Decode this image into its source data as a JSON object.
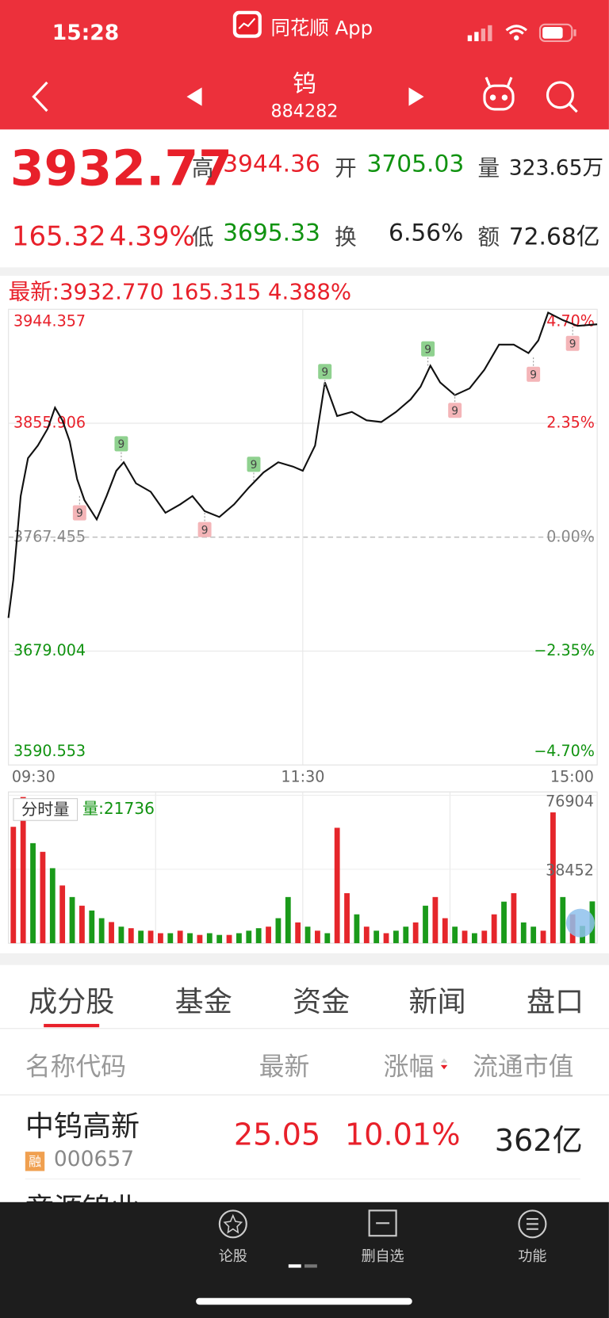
{
  "status_bar": {
    "time": "15:28",
    "app_name": "同花顺 App"
  },
  "header": {
    "title": "钨",
    "code": "884282"
  },
  "quote": {
    "price": "3932.77",
    "change": "165.32",
    "change_pct": "4.39%",
    "stats": [
      {
        "label": "高",
        "value": "3944.36"
      },
      {
        "label": "开",
        "value": "3705.03"
      },
      {
        "label": "量",
        "value": "323.65万"
      },
      {
        "label": "低",
        "value": "3695.33"
      },
      {
        "label": "换",
        "value": "6.56%"
      },
      {
        "label": "额",
        "value": "72.68亿"
      }
    ]
  },
  "chart_data": [
    {
      "type": "line",
      "title": "最新:3932.770 165.315 4.388%",
      "color": "#111111",
      "x": [
        0,
        2,
        5,
        8,
        12,
        16,
        19,
        22,
        25,
        28,
        31,
        36,
        40,
        44,
        47,
        52,
        58,
        64,
        70,
        75,
        80,
        86,
        92,
        98,
        104,
        110,
        116,
        120,
        125,
        129,
        134,
        140,
        146,
        152,
        158,
        164,
        168,
        172,
        176,
        182,
        188,
        194,
        200,
        206,
        212,
        216,
        220,
        226,
        232,
        240
      ],
      "values": [
        3704.8,
        3734.2,
        3799.4,
        3828.8,
        3838.6,
        3851.7,
        3868.0,
        3858.2,
        3841.9,
        3812.5,
        3796.2,
        3781.2,
        3799.4,
        3819.0,
        3825.6,
        3809.2,
        3802.7,
        3786.4,
        3792.9,
        3799.4,
        3787.7,
        3783.1,
        3792.9,
        3806.0,
        3817.7,
        3825.6,
        3822.3,
        3819.0,
        3838.6,
        3887.6,
        3861.5,
        3864.7,
        3858.2,
        3856.9,
        3864.7,
        3874.5,
        3884.3,
        3900.6,
        3887.6,
        3877.8,
        3883.0,
        3897.4,
        3917.0,
        3917.0,
        3910.4,
        3920.2,
        3941.8,
        3936.0,
        3931.5,
        3932.77
      ],
      "xlim": [
        0,
        240
      ],
      "xticks": [
        {
          "value": 0,
          "label": "09:30"
        },
        {
          "value": 120,
          "label": "11:30"
        },
        {
          "value": 240,
          "label": "15:00"
        }
      ],
      "ylim": [
        3590.553,
        3944.357
      ],
      "yticks": [
        3590.553,
        3679.004,
        3767.455,
        3855.906,
        3944.357
      ],
      "y2lim": [
        -4.7,
        4.7
      ],
      "y2ticks": [
        {
          "value": -4.7,
          "label": "−4.70%"
        },
        {
          "value": -2.35,
          "label": "−2.35%"
        },
        {
          "value": 0,
          "label": "0.00%"
        },
        {
          "value": 2.35,
          "label": "2.35%"
        },
        {
          "value": 4.7,
          "label": "4.70%"
        }
      ],
      "grid": true,
      "annotations": [
        {
          "x": 46,
          "y": 3826.9,
          "text": "9",
          "color": "#8fd18f"
        },
        {
          "x": 100,
          "y": 3811.0,
          "text": "9",
          "color": "#8fd18f"
        },
        {
          "x": 129,
          "y": 3883.0,
          "text": "9",
          "color": "#8fd18f"
        },
        {
          "x": 171,
          "y": 3900.6,
          "text": "9",
          "color": "#8fd18f"
        },
        {
          "x": 29,
          "y": 3799.4,
          "text": "9",
          "color": "#f4b5b8"
        },
        {
          "x": 80,
          "y": 3786.4,
          "text": "9",
          "color": "#f4b5b8"
        },
        {
          "x": 182,
          "y": 3879.0,
          "text": "9",
          "color": "#f4b5b8"
        },
        {
          "x": 214,
          "y": 3907.0,
          "text": "9",
          "color": "#f4b5b8"
        },
        {
          "x": 230,
          "y": 3931.0,
          "text": "9",
          "color": "#f4b5b8"
        }
      ]
    },
    {
      "type": "bar",
      "title": "分时量",
      "subtitle": "量:21736",
      "x": [
        2,
        6,
        10,
        14,
        18,
        22,
        26,
        30,
        34,
        38,
        42,
        46,
        50,
        54,
        58,
        62,
        66,
        70,
        74,
        78,
        82,
        86,
        90,
        94,
        98,
        102,
        106,
        110,
        114,
        118,
        122,
        126,
        130,
        134,
        138,
        142,
        146,
        150,
        154,
        158,
        162,
        166,
        170,
        174,
        178,
        182,
        186,
        190,
        194,
        198,
        202,
        206,
        210,
        214,
        218,
        222,
        226,
        230,
        234,
        238
      ],
      "values": [
        60500,
        76000,
        52000,
        47500,
        39000,
        30000,
        24000,
        19500,
        17000,
        13000,
        11000,
        8600,
        7800,
        6500,
        6500,
        5200,
        5200,
        6500,
        5200,
        4300,
        5200,
        4300,
        4300,
        5200,
        6500,
        7800,
        8600,
        13000,
        24000,
        10800,
        8600,
        6500,
        5200,
        60000,
        26000,
        15000,
        8600,
        6500,
        5200,
        6500,
        8600,
        10800,
        19500,
        24000,
        13000,
        8600,
        6500,
        5200,
        6500,
        15000,
        21600,
        26000,
        10800,
        8600,
        6500,
        68000,
        24000,
        15000,
        9000,
        21736
      ],
      "colors": [
        "#e5262b",
        "#e5262b",
        "#1a9a1a",
        "#e5262b",
        "#1a9a1a",
        "#e5262b",
        "#1a9a1a",
        "#e5262b",
        "#1a9a1a",
        "#1a9a1a",
        "#e5262b",
        "#1a9a1a",
        "#e5262b",
        "#1a9a1a",
        "#e5262b",
        "#e5262b",
        "#1a9a1a",
        "#e5262b",
        "#1a9a1a",
        "#e5262b",
        "#1a9a1a",
        "#1a9a1a",
        "#e5262b",
        "#1a9a1a",
        "#1a9a1a",
        "#1a9a1a",
        "#e5262b",
        "#1a9a1a",
        "#1a9a1a",
        "#e5262b",
        "#1a9a1a",
        "#e5262b",
        "#1a9a1a",
        "#e5262b",
        "#e5262b",
        "#1a9a1a",
        "#e5262b",
        "#1a9a1a",
        "#e5262b",
        "#1a9a1a",
        "#1a9a1a",
        "#e5262b",
        "#1a9a1a",
        "#e5262b",
        "#e5262b",
        "#1a9a1a",
        "#e5262b",
        "#1a9a1a",
        "#e5262b",
        "#e5262b",
        "#1a9a1a",
        "#e5262b",
        "#1a9a1a",
        "#1a9a1a",
        "#e5262b",
        "#e5262b",
        "#1a9a1a",
        "#e5262b",
        "#1a9a1a",
        "#1a9a1a"
      ],
      "xlim": [
        0,
        240
      ],
      "ylim": [
        0,
        76904
      ],
      "yticks": [
        38452,
        76904
      ]
    }
  ],
  "tabs": [
    "成分股",
    "基金",
    "资金",
    "新闻",
    "盘口"
  ],
  "table": {
    "columns": [
      "名称代码",
      "最新",
      "涨幅",
      "流通市值"
    ],
    "rows": [
      {
        "name": "中钨高新",
        "tag": "融",
        "code": "000657",
        "price": "25.05",
        "change_pct": "10.01%",
        "float_cap": "362亿"
      },
      {
        "name": "章源钨业"
      }
    ]
  },
  "bottom_nav": [
    "论股",
    "删自选",
    "功能"
  ]
}
